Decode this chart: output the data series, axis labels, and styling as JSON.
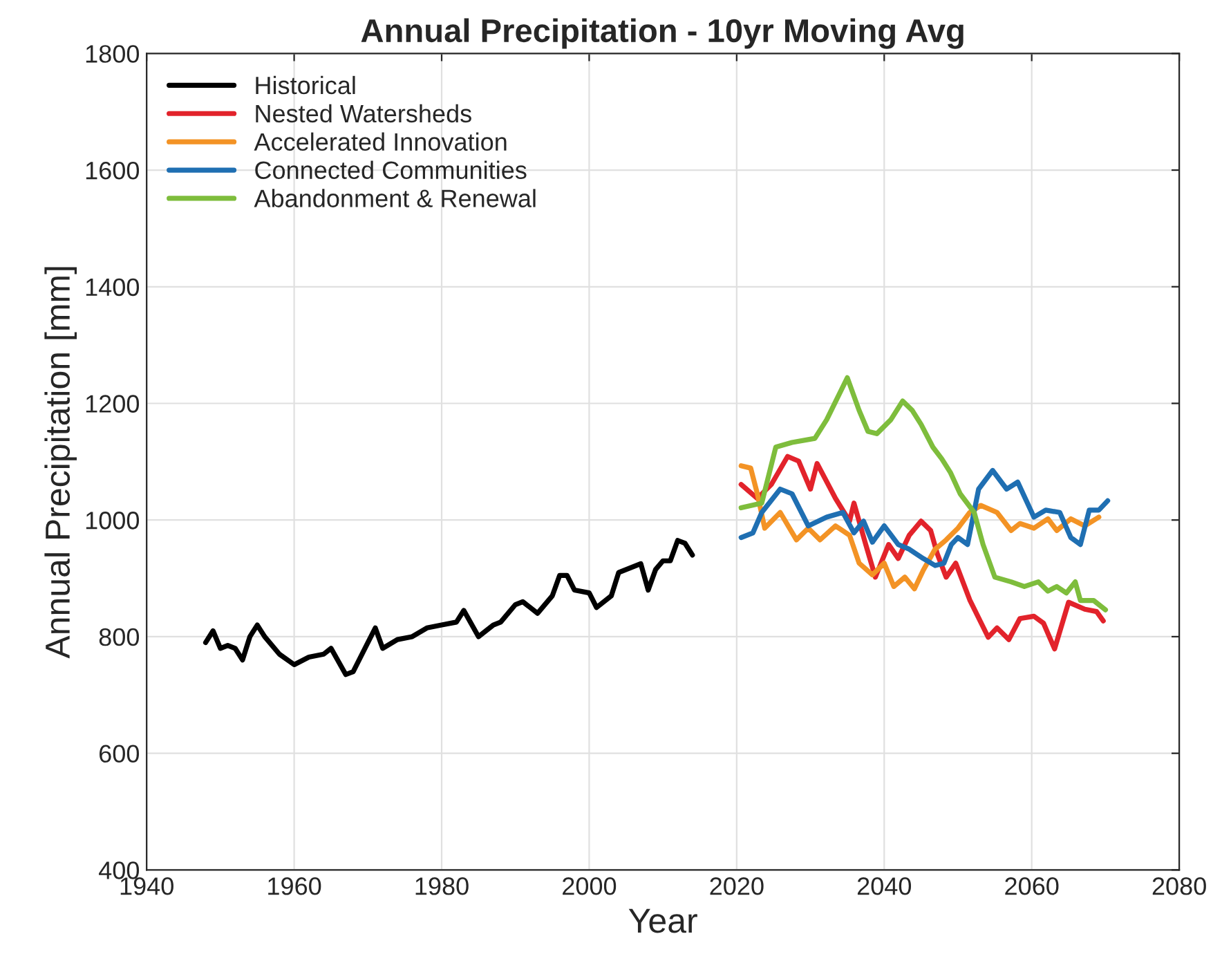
{
  "chart_data": {
    "type": "line",
    "title": "Annual Precipitation - 10yr Moving Avg",
    "xlabel": "Year",
    "ylabel": "Annual Precipitation [mm]",
    "xlim": [
      1940,
      2080
    ],
    "xticks": [
      1940,
      1960,
      1980,
      2000,
      2020,
      2040,
      2060,
      2080
    ],
    "ylim": [
      400,
      1800
    ],
    "yticks": [
      400,
      600,
      800,
      1000,
      1200,
      1400,
      1600,
      1800
    ],
    "grid": true,
    "legend": "top left",
    "line_style": "solid",
    "series": [
      {
        "name": "Historical",
        "color": "#000000",
        "x": [
          1948,
          1949,
          1950,
          1951,
          1952,
          1953,
          1954,
          1955,
          1956,
          1958,
          1960,
          1962,
          1964,
          1965,
          1967,
          1968,
          1970,
          1971,
          1972,
          1974,
          1976,
          1978,
          1980,
          1982,
          1983,
          1985,
          1987,
          1988,
          1990,
          1991,
          1993,
          1995,
          1996,
          1997,
          1998,
          2000,
          2001,
          2003,
          2004,
          2006,
          2007,
          2008,
          2009,
          2010,
          2011,
          2012,
          2013,
          2014
        ],
        "values": [
          790,
          810,
          780,
          785,
          780,
          760,
          800,
          820,
          800,
          770,
          752,
          765,
          770,
          780,
          735,
          740,
          790,
          815,
          780,
          795,
          800,
          815,
          820,
          825,
          845,
          800,
          820,
          825,
          855,
          860,
          840,
          870,
          905,
          905,
          880,
          875,
          850,
          870,
          910,
          920,
          925,
          880,
          915,
          930,
          930,
          965,
          960,
          940
        ]
      },
      {
        "name": "Nested Watersheds",
        "color": "#e2232b",
        "x": [
          2020.6,
          2022.8,
          2024.7,
          2026.9,
          2028.4,
          2030,
          2030.9,
          2033.4,
          2035.3,
          2035.9,
          2037.5,
          2038.8,
          2040.6,
          2041.9,
          2043.4,
          2045,
          2046.3,
          2047.2,
          2048.4,
          2049.7,
          2051.6,
          2054.1,
          2055.3,
          2056.9,
          2058.4,
          2060.3,
          2061.6,
          2063.1,
          2065,
          2067.2,
          2068.8,
          2069.7
        ],
        "values": [
          1061,
          1037,
          1061,
          1109,
          1101,
          1053,
          1097,
          1037,
          998,
          1029,
          958,
          902,
          958,
          934,
          974,
          998,
          982,
          942,
          902,
          926,
          863,
          799,
          815,
          795,
          831,
          835,
          823,
          779,
          859,
          847,
          843,
          827
        ]
      },
      {
        "name": "Accelerated Innovation",
        "color": "#f39325",
        "x": [
          2020.6,
          2021.9,
          2022.8,
          2023.8,
          2025.9,
          2028.1,
          2029.7,
          2031.3,
          2033.4,
          2035.3,
          2036.6,
          2038.4,
          2040,
          2041.3,
          2042.8,
          2044.1,
          2045.3,
          2046.9,
          2048.4,
          2050,
          2051.6,
          2053.1,
          2055.3,
          2057.2,
          2058.4,
          2060.3,
          2062.2,
          2063.4,
          2065.3,
          2067.2,
          2069.1
        ],
        "values": [
          1093,
          1089,
          1045,
          986,
          1013,
          966,
          986,
          966,
          990,
          974,
          926,
          906,
          926,
          886,
          902,
          882,
          914,
          950,
          966,
          986,
          1013,
          1025,
          1013,
          982,
          994,
          986,
          1002,
          982,
          1002,
          990,
          1005
        ]
      },
      {
        "name": "Connected Communities",
        "color": "#1f6fb2",
        "x": [
          2020.6,
          2022.2,
          2023.4,
          2025.9,
          2027.5,
          2029.7,
          2032.2,
          2034.4,
          2035.9,
          2037.2,
          2038.4,
          2040,
          2041.9,
          2043.4,
          2045.3,
          2046.9,
          2048.1,
          2049.1,
          2050,
          2051.3,
          2052.8,
          2054.7,
          2056.6,
          2058.1,
          2060.3,
          2061.9,
          2063.8,
          2065.3,
          2066.6,
          2067.8,
          2069.1,
          2070.3
        ],
        "values": [
          970,
          978,
          1013,
          1053,
          1045,
          990,
          1005,
          1013,
          978,
          998,
          962,
          990,
          958,
          950,
          934,
          922,
          926,
          958,
          970,
          958,
          1053,
          1085,
          1053,
          1065,
          1005,
          1017,
          1013,
          970,
          958,
          1017,
          1017,
          1033
        ]
      },
      {
        "name": "Abandonment & Renewal",
        "color": "#7ebd3c",
        "x": [
          2020.6,
          2023.4,
          2025.3,
          2027.5,
          2030.6,
          2032.2,
          2035,
          2036.6,
          2037.8,
          2039,
          2040.9,
          2042.5,
          2043.8,
          2045,
          2046.6,
          2047.8,
          2049,
          2050.3,
          2052.2,
          2053.4,
          2055,
          2057.2,
          2059,
          2060.9,
          2062.2,
          2063.4,
          2064.7,
          2065.9,
          2066.6,
          2068.4,
          2070
        ],
        "values": [
          1021,
          1029,
          1125,
          1133,
          1140,
          1172,
          1244,
          1188,
          1152,
          1148,
          1172,
          1204,
          1188,
          1164,
          1125,
          1105,
          1081,
          1045,
          1013,
          958,
          902,
          894,
          886,
          894,
          878,
          886,
          875,
          894,
          862,
          862,
          846
        ]
      }
    ]
  }
}
